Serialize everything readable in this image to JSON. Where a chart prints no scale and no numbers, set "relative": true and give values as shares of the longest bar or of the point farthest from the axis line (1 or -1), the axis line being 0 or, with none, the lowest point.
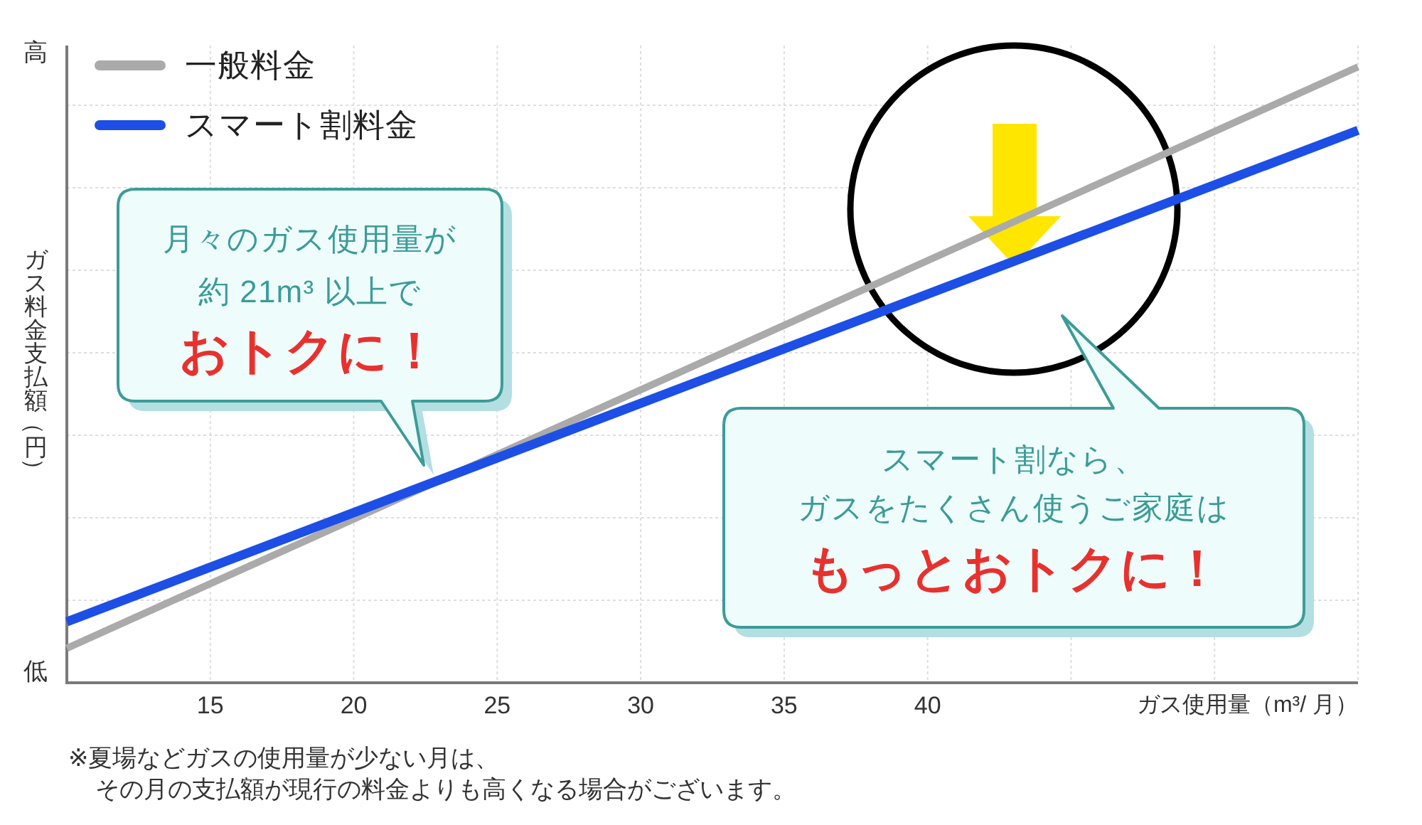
{
  "chart_data": {
    "type": "line",
    "relative": true,
    "xlabel": "ガス使用量（m³/ 月）",
    "ylabel": "ガス料金支払額（円）",
    "x": [
      10,
      55
    ],
    "xlim": [
      10,
      55
    ],
    "xticks": [
      15,
      20,
      25,
      30,
      35,
      40,
      {
        "value": 45,
        "label": null
      },
      {
        "value": 50,
        "label": null
      },
      {
        "value": 55,
        "label": null
      }
    ],
    "grid": true,
    "legend": "top left",
    "series": [
      {
        "name": "一般料金",
        "color": "#aaaaaa",
        "values": [
          0.056,
          1
        ]
      },
      {
        "name": "スマート割料金",
        "color": "#1d4fe6",
        "values": [
          0.099,
          0.897
        ]
      }
    ],
    "annotations": [
      "高",
      "低",
      "月々のガス使用量が",
      "約 21m³ 以上で",
      "おトクに！",
      "スマート割なら、",
      "ガスをたくさん使うご家庭は",
      "もっとおトクに！",
      "※夏場などガスの使用量が少ない月は、",
      "その月の支払額が現行の料金よりも高くなる場合がございます。"
    ]
  }
}
